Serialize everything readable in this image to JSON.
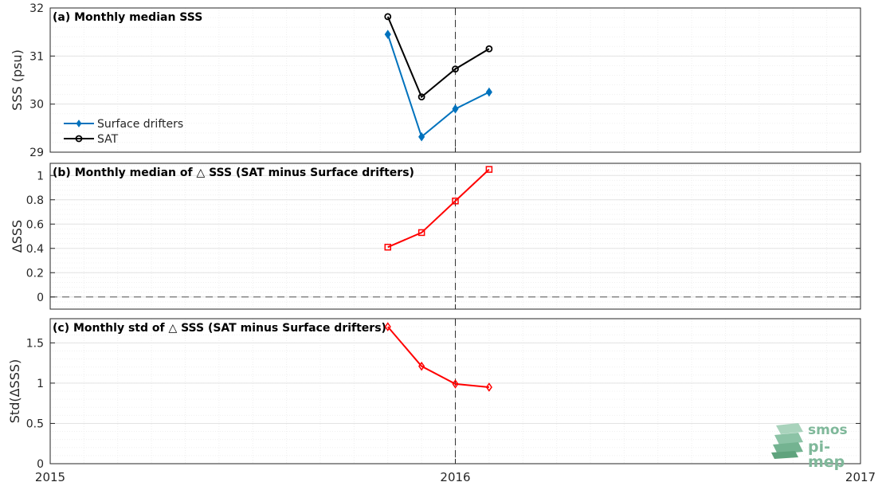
{
  "chart_data": [
    {
      "type": "line",
      "title": "(a) Monthly median SSS",
      "xlabel": "",
      "ylabel": "SSS (psu)",
      "xlim": [
        "2015-01",
        "2017-01"
      ],
      "ylim": [
        29,
        32
      ],
      "y_ticks": [
        29,
        30,
        31,
        32
      ],
      "x": [
        "2015-11",
        "2015-12",
        "2016-01",
        "2016-02"
      ],
      "series": [
        {
          "name": "Surface drifters",
          "color": "#0072BD",
          "marker": "diamond",
          "values": [
            31.45,
            29.32,
            29.9,
            30.25
          ]
        },
        {
          "name": "SAT",
          "color": "#000000",
          "marker": "circle",
          "values": [
            31.82,
            30.15,
            30.73,
            31.15
          ]
        }
      ],
      "legend_position": "lower-left",
      "grid": true
    },
    {
      "type": "line",
      "title": "(b) Monthly median of △ SSS (SAT minus Surface drifters)",
      "xlabel": "",
      "ylabel": "ΔSSS",
      "xlim": [
        "2015-01",
        "2017-01"
      ],
      "ylim": [
        -0.1,
        1.1
      ],
      "y_ticks": [
        0,
        0.2,
        0.4,
        0.6,
        0.8,
        1
      ],
      "x": [
        "2015-11",
        "2015-12",
        "2016-01",
        "2016-02"
      ],
      "series": [
        {
          "color": "#FF0000",
          "marker": "square",
          "values": [
            0.41,
            0.53,
            0.79,
            1.05
          ]
        }
      ],
      "reference_line": 0,
      "grid": true
    },
    {
      "type": "line",
      "title": "(c) Monthly std of △ SSS (SAT minus Surface drifters)",
      "xlabel": "",
      "ylabel": "Std(ΔSSS)",
      "xlim": [
        "2015-01",
        "2017-01"
      ],
      "ylim": [
        0,
        1.8
      ],
      "y_ticks": [
        0,
        0.5,
        1,
        1.5
      ],
      "x": [
        "2015-11",
        "2015-12",
        "2016-01",
        "2016-02"
      ],
      "series": [
        {
          "color": "#FF0000",
          "marker": "diamond",
          "values": [
            1.7,
            1.21,
            0.99,
            0.95
          ]
        }
      ],
      "grid": true
    }
  ],
  "x_tick_labels": [
    "2015",
    "2016",
    "2017"
  ],
  "vertical_marker": "2016-01",
  "logo": {
    "line1": "smos",
    "line2": "pi-mep",
    "color": "#7fb89a"
  }
}
